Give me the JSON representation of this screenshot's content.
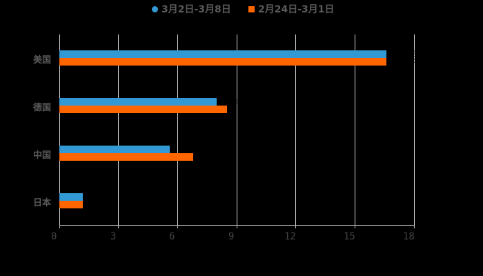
{
  "chart_data": {
    "type": "bar",
    "orientation": "horizontal",
    "title": "",
    "xlabel": "",
    "ylabel": "",
    "categories": [
      "美国",
      "德国",
      "中国",
      "日本"
    ],
    "series": [
      {
        "name": "3月2日-3月8日",
        "color": "#3399d4",
        "values": [
          16.6,
          8.0,
          5.6,
          1.2
        ]
      },
      {
        "name": "2月24日-3月1日",
        "color": "#ff6600",
        "values": [
          16.6,
          8.5,
          6.8,
          1.2
        ]
      }
    ],
    "xlim": [
      0,
      18
    ],
    "xticks": [
      "0",
      "3",
      "6",
      "9",
      "12",
      "15",
      "18"
    ],
    "grid": true,
    "legend_position": "top"
  },
  "legend": {
    "series1": "3月2日-3月8日",
    "series2": "2月24日-3月1日"
  },
  "colors": {
    "series1": "#3399d4",
    "series2": "#ff6600",
    "background": "#000000"
  }
}
